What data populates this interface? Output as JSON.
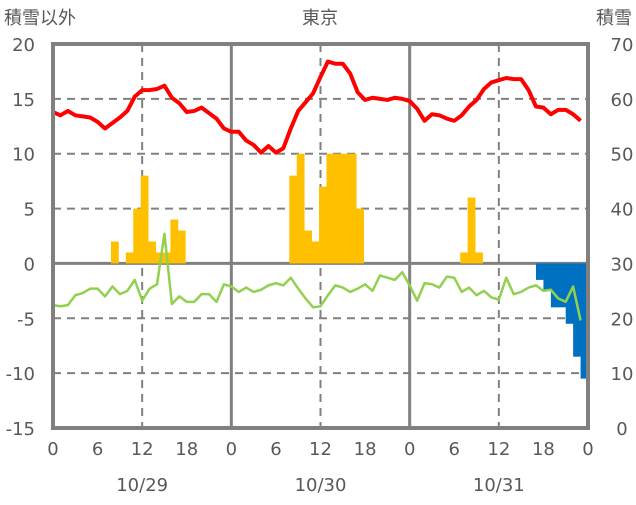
{
  "chart_data": {
    "type": "bar+line",
    "title": "東京",
    "left_axis_label": "積雪以外",
    "right_axis_label": "積雪",
    "left_ylim": [
      -15,
      20
    ],
    "left_ticks": [
      20,
      15,
      10,
      5,
      0,
      -5,
      -10,
      -15
    ],
    "right_ylim": [
      0,
      70
    ],
    "right_ticks": [
      70,
      60,
      50,
      40,
      30,
      20,
      10,
      0
    ],
    "x_hours_range": [
      0,
      72
    ],
    "x_tick_labels": [
      "0",
      "6",
      "12",
      "18",
      "0",
      "6",
      "12",
      "18",
      "0",
      "6",
      "12",
      "18",
      "0"
    ],
    "date_labels": [
      "10/29",
      "10/30",
      "10/31"
    ],
    "colors": {
      "temperature": "#ff0000",
      "green_series": "#92d050",
      "precipitation": "#ffc000",
      "snow_depth": "#0070c0",
      "grid": "#808080",
      "text": "#595959"
    },
    "series": [
      {
        "name": "temperature",
        "type": "line",
        "axis": "left",
        "values": [
          13.8,
          13.5,
          13.9,
          13.5,
          13.4,
          13.3,
          12.9,
          12.3,
          12.8,
          13.3,
          13.9,
          15.2,
          15.8,
          15.8,
          15.9,
          16.2,
          15.1,
          14.6,
          13.8,
          13.9,
          14.2,
          13.7,
          13.2,
          12.3,
          12.0,
          12.0,
          11.2,
          10.8,
          10.1,
          10.7,
          10.1,
          10.5,
          12.3,
          13.9,
          14.7,
          15.5,
          17.0,
          18.4,
          18.2,
          18.2,
          17.3,
          15.6,
          14.9,
          15.1,
          15.0,
          14.9,
          15.1,
          15.0,
          14.8,
          14.1,
          13.0,
          13.6,
          13.5,
          13.2,
          13.0,
          13.5,
          14.3,
          14.9,
          15.9,
          16.5,
          16.7,
          16.9,
          16.8,
          16.8,
          15.8,
          14.3,
          14.2,
          13.6,
          14.0,
          14.0,
          13.6,
          13.0
        ]
      },
      {
        "name": "green_series",
        "type": "line",
        "axis": "left",
        "values": [
          -3.8,
          -3.9,
          -3.8,
          -2.9,
          -2.7,
          -2.3,
          -2.3,
          -3.0,
          -2.1,
          -2.8,
          -2.5,
          -1.5,
          -3.4,
          -2.3,
          -1.9,
          2.7,
          -3.7,
          -3.0,
          -3.5,
          -3.5,
          -2.8,
          -2.8,
          -3.5,
          -1.9,
          -2.1,
          -2.6,
          -2.2,
          -2.6,
          -2.4,
          -2.0,
          -1.8,
          -2.0,
          -1.3,
          -2.3,
          -3.2,
          -4.0,
          -3.9,
          -2.9,
          -2.0,
          -2.2,
          -2.6,
          -2.3,
          -1.9,
          -2.5,
          -1.1,
          -1.3,
          -1.5,
          -0.8,
          -2.0,
          -3.4,
          -1.8,
          -1.9,
          -2.2,
          -1.2,
          -1.3,
          -2.6,
          -2.2,
          -2.9,
          -2.5,
          -3.1,
          -3.3,
          -1.3,
          -2.8,
          -2.6,
          -2.2,
          -2.0,
          -2.5,
          -2.4,
          -3.2,
          -3.5,
          -2.1,
          -5.2
        ]
      },
      {
        "name": "precipitation",
        "type": "bar",
        "axis": "left",
        "hours": [
          8,
          10,
          11,
          12,
          13,
          14,
          15,
          16,
          17,
          32,
          33,
          34,
          35,
          36,
          37,
          38,
          39,
          40,
          41,
          55,
          56,
          57
        ],
        "values": [
          2,
          1,
          5,
          8,
          2,
          1,
          1,
          4,
          3,
          8,
          10,
          3,
          2,
          7,
          10,
          10,
          10,
          10,
          5,
          1,
          6,
          1
        ]
      },
      {
        "name": "snow_depth",
        "type": "bar",
        "axis": "right",
        "baseline": 30,
        "hours": [
          65,
          66,
          67,
          68,
          69,
          70,
          71
        ],
        "values": [
          27,
          25,
          22,
          22,
          19,
          13,
          9
        ]
      }
    ]
  }
}
